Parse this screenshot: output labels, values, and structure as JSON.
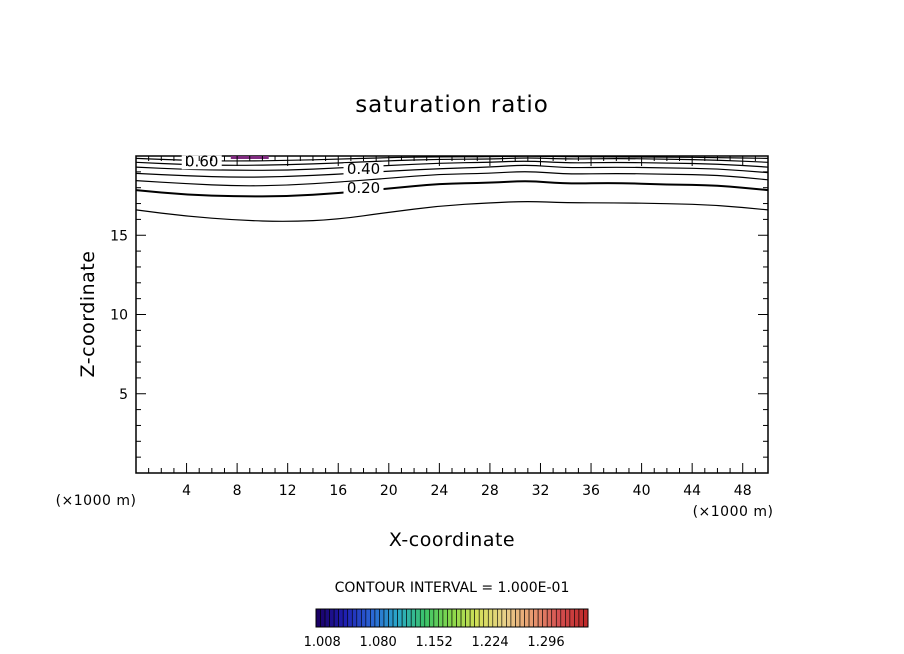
{
  "chart_data": {
    "type": "contour",
    "title": "saturation ratio",
    "xlabel": "X-coordinate",
    "ylabel": "Z-coordinate",
    "x_unit": "(×1000 m)",
    "y_unit": "(×1000 m)",
    "xlim": [
      0,
      50
    ],
    "ylim": [
      0,
      20
    ],
    "x_ticks": [
      4,
      8,
      12,
      16,
      20,
      24,
      28,
      32,
      36,
      40,
      44,
      48
    ],
    "y_ticks": [
      5,
      10,
      15
    ],
    "contour_interval_text": "CONTOUR INTERVAL = 1.000E-01",
    "contours": [
      {
        "level": "0.10",
        "labeled": false,
        "bold": false,
        "x": [
          0,
          4,
          8,
          12,
          16,
          20,
          24,
          28,
          31,
          34,
          38,
          42,
          46,
          50
        ],
        "y": [
          16.6,
          16.2,
          15.95,
          15.85,
          16.0,
          16.45,
          16.85,
          17.05,
          17.15,
          17.05,
          17.05,
          17.0,
          16.9,
          16.6
        ]
      },
      {
        "level": "0.20",
        "labeled": true,
        "bold": true,
        "x": [
          0,
          4,
          8,
          12,
          16,
          20,
          24,
          28,
          31,
          34,
          38,
          42,
          46,
          50
        ],
        "y": [
          17.85,
          17.55,
          17.45,
          17.45,
          17.65,
          17.95,
          18.25,
          18.3,
          18.45,
          18.25,
          18.3,
          18.2,
          18.15,
          17.85
        ]
      },
      {
        "level": "0.30",
        "labeled": false,
        "bold": false,
        "x": [
          0,
          4,
          8,
          12,
          16,
          20,
          24,
          28,
          31,
          34,
          38,
          42,
          46,
          50
        ],
        "y": [
          18.45,
          18.25,
          18.1,
          18.15,
          18.35,
          18.6,
          18.85,
          18.9,
          19.05,
          18.85,
          18.9,
          18.85,
          18.8,
          18.5
        ]
      },
      {
        "level": "0.40",
        "labeled": true,
        "bold": false,
        "x": [
          0,
          4,
          8,
          12,
          16,
          20,
          24,
          28,
          31,
          34,
          38,
          42,
          46,
          50
        ],
        "y": [
          18.9,
          18.75,
          18.65,
          18.7,
          18.85,
          19.05,
          19.2,
          19.3,
          19.45,
          19.25,
          19.3,
          19.25,
          19.2,
          18.95
        ]
      },
      {
        "level": "0.50",
        "labeled": false,
        "bold": false,
        "x": [
          0,
          4,
          8,
          12,
          16,
          20,
          24,
          28,
          31,
          34,
          38,
          42,
          46,
          50
        ],
        "y": [
          19.3,
          19.15,
          19.1,
          19.1,
          19.25,
          19.4,
          19.55,
          19.6,
          19.7,
          19.55,
          19.6,
          19.55,
          19.5,
          19.3
        ]
      },
      {
        "level": "0.60",
        "labeled": true,
        "bold": false,
        "x": [
          0,
          4,
          8,
          12,
          16,
          20,
          24,
          28,
          31,
          34,
          38,
          42,
          46,
          50
        ],
        "y": [
          19.6,
          19.45,
          19.4,
          19.45,
          19.55,
          19.7,
          19.8,
          19.8,
          19.9,
          19.8,
          19.85,
          19.8,
          19.75,
          19.6
        ]
      },
      {
        "level": "0.70",
        "labeled": false,
        "bold": false,
        "x": [
          0,
          4,
          8,
          12,
          16,
          20,
          24,
          28,
          31,
          34,
          38,
          42,
          46,
          50
        ],
        "y": [
          19.85,
          19.72,
          19.68,
          19.72,
          19.8,
          19.9,
          19.95,
          19.95,
          20.0,
          19.95,
          19.95,
          19.93,
          19.9,
          19.85
        ]
      }
    ],
    "contour_labels": [
      {
        "text": "0.60",
        "x": 5.2,
        "y": 19.35
      },
      {
        "text": "0.40",
        "x": 18.0,
        "y": 18.85
      },
      {
        "text": "0.20",
        "x": 18.0,
        "y": 17.65
      }
    ],
    "saturation_patch": {
      "x": [
        7.5,
        10.5
      ],
      "color": "#7f2a7f"
    },
    "colorbar": {
      "tick_labels": [
        "1.008",
        "1.080",
        "1.152",
        "1.224",
        "1.296"
      ],
      "tick_values": [
        1.008,
        1.08,
        1.152,
        1.224,
        1.296
      ],
      "range": [
        1.0,
        1.35
      ],
      "colormap": [
        "#1a0066",
        "#1f1fb0",
        "#2a66d6",
        "#2aaac8",
        "#3cc468",
        "#8ad84a",
        "#d6e05a",
        "#e8d08a",
        "#e89a70",
        "#d45050",
        "#c02a2a"
      ]
    }
  }
}
